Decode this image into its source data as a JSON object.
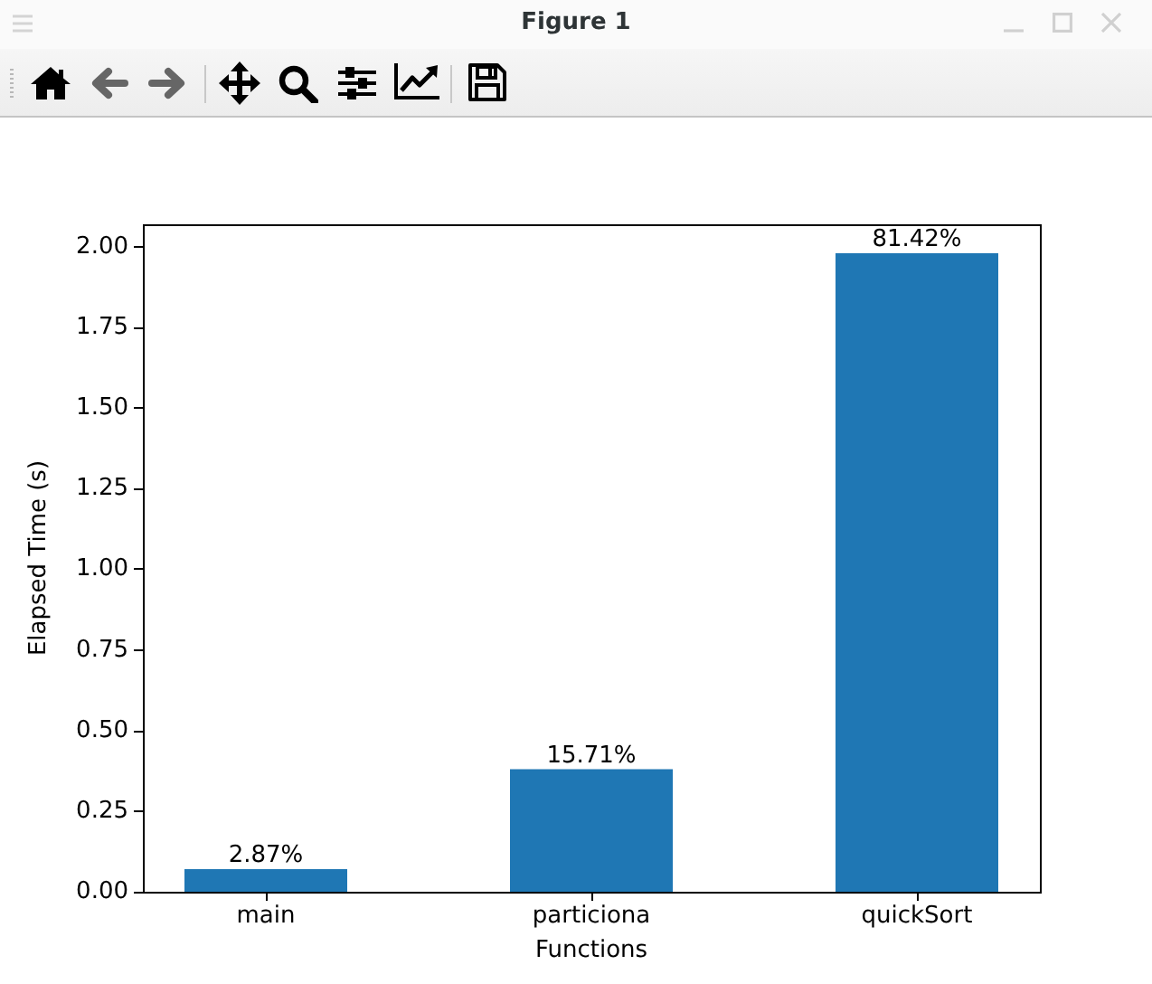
{
  "chart_data": {
    "type": "bar",
    "title": "Figure 1",
    "xlabel": "Functions",
    "ylabel": "Elapsed Time (s)",
    "categories": [
      "main",
      "particiona",
      "quickSort"
    ],
    "values": [
      0.07,
      0.38,
      1.98
    ],
    "color": "#1f77b4",
    "annotations": [
      {
        "text": "2.87%",
        "x": "main",
        "y": 0.07
      },
      {
        "text": "15.71%",
        "x": "particiona",
        "y": 0.38
      },
      {
        "text": "81.42%",
        "x": "quickSort",
        "y": 1.98
      }
    ],
    "ylim": [
      0,
      2.07
    ],
    "yticks": [
      {
        "value": 0,
        "label": "0.00"
      },
      {
        "value": 0.25,
        "label": "0.25"
      },
      {
        "value": 0.5,
        "label": "0.50"
      },
      {
        "value": 0.75,
        "label": "0.75"
      },
      {
        "value": 1,
        "label": "1.00"
      },
      {
        "value": 1.25,
        "label": "1.25"
      },
      {
        "value": 1.5,
        "label": "1.50"
      },
      {
        "value": 1.75,
        "label": "1.75"
      },
      {
        "value": 2,
        "label": "2.00"
      }
    ]
  }
}
